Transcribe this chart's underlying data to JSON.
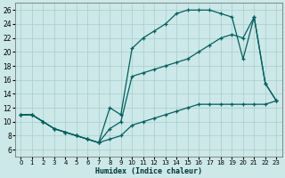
{
  "xlabel": "Humidex (Indice chaleur)",
  "bg_color": "#cce8e8",
  "grid_color": "#aacccc",
  "line_color": "#006060",
  "xlim": [
    -0.5,
    23.5
  ],
  "ylim": [
    5,
    27
  ],
  "xticks": [
    0,
    1,
    2,
    3,
    4,
    5,
    6,
    7,
    8,
    9,
    10,
    11,
    12,
    13,
    14,
    15,
    16,
    17,
    18,
    19,
    20,
    21,
    22,
    23
  ],
  "yticks": [
    6,
    8,
    10,
    12,
    14,
    16,
    18,
    20,
    22,
    24,
    26
  ],
  "line1_x": [
    0,
    1,
    2,
    3,
    4,
    5,
    6,
    7,
    8,
    9,
    10,
    11,
    12,
    13,
    14,
    15,
    16,
    17,
    18,
    19,
    20,
    21,
    22,
    23
  ],
  "line1_y": [
    11.0,
    11.0,
    10.0,
    9.0,
    8.5,
    8.0,
    7.5,
    7.0,
    7.5,
    8.0,
    9.5,
    10.0,
    10.5,
    11.0,
    11.5,
    12.0,
    12.5,
    12.5,
    12.5,
    12.5,
    12.5,
    12.5,
    12.5,
    13.0
  ],
  "line2_x": [
    0,
    1,
    2,
    3,
    4,
    5,
    6,
    7,
    8,
    9,
    10,
    11,
    12,
    13,
    14,
    15,
    16,
    17,
    18,
    19,
    20,
    21,
    22,
    23
  ],
  "line2_y": [
    11.0,
    11.0,
    10.0,
    9.0,
    8.5,
    8.0,
    7.5,
    7.0,
    9.0,
    10.0,
    16.5,
    17.0,
    17.5,
    18.0,
    18.5,
    19.0,
    20.0,
    21.0,
    22.0,
    22.5,
    22.0,
    25.0,
    15.5,
    13.0
  ],
  "line3_x": [
    0,
    1,
    2,
    3,
    4,
    5,
    6,
    7,
    8,
    9,
    10,
    11,
    12,
    13,
    14,
    15,
    16,
    17,
    18,
    19,
    20,
    21,
    22,
    23
  ],
  "line3_y": [
    11.0,
    11.0,
    10.0,
    9.0,
    8.5,
    8.0,
    7.5,
    7.0,
    12.0,
    11.0,
    20.5,
    22.0,
    23.0,
    24.0,
    25.5,
    26.0,
    26.0,
    26.0,
    25.5,
    25.0,
    19.0,
    25.0,
    15.5,
    13.0
  ]
}
